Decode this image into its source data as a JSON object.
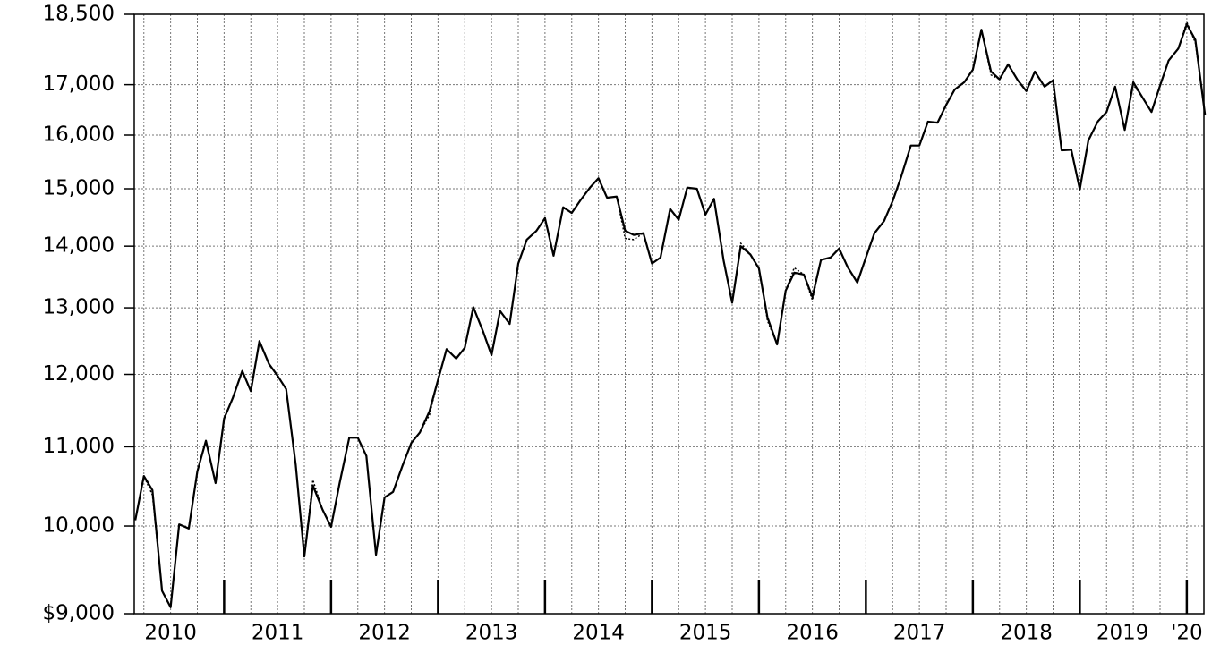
{
  "chart_data": {
    "type": "line",
    "log_scale": true,
    "grid": true,
    "xlim": [
      2010.16,
      2020.16
    ],
    "ylim": [
      9000,
      18500
    ],
    "yticks": [
      {
        "value": 9000,
        "label": "$9,000"
      },
      {
        "value": 10000,
        "label": "10,000"
      },
      {
        "value": 11000,
        "label": "11,000"
      },
      {
        "value": 12000,
        "label": "12,000"
      },
      {
        "value": 13000,
        "label": "13,000"
      },
      {
        "value": 14000,
        "label": "14,000"
      },
      {
        "value": 15000,
        "label": "15,000"
      },
      {
        "value": 16000,
        "label": "16,000"
      },
      {
        "value": 17000,
        "label": "17,000"
      },
      {
        "value": 18500,
        "label": "18,500"
      }
    ],
    "xticks": [
      2011,
      2012,
      2013,
      2014,
      2015,
      2016,
      2017,
      2018,
      2019,
      2020
    ],
    "x_minor_ticks": [
      2010.25,
      2010.5,
      2010.75,
      2011,
      2011.25,
      2011.5,
      2011.75,
      2012,
      2012.25,
      2012.5,
      2012.75,
      2013,
      2013.25,
      2013.5,
      2013.75,
      2014,
      2014.25,
      2014.5,
      2014.75,
      2015,
      2015.25,
      2015.5,
      2015.75,
      2016,
      2016.25,
      2016.5,
      2016.75,
      2017,
      2017.25,
      2017.5,
      2017.75,
      2018,
      2018.25,
      2018.5,
      2018.75,
      2019,
      2019.25,
      2019.5,
      2019.75,
      2020
    ],
    "x_labels": [
      {
        "value": 2010.5,
        "label": "2010"
      },
      {
        "value": 2011.5,
        "label": "2011"
      },
      {
        "value": 2012.5,
        "label": "2012"
      },
      {
        "value": 2013.5,
        "label": "2013"
      },
      {
        "value": 2014.5,
        "label": "2014"
      },
      {
        "value": 2015.5,
        "label": "2015"
      },
      {
        "value": 2016.5,
        "label": "2016"
      },
      {
        "value": 2017.5,
        "label": "2017"
      },
      {
        "value": 2018.5,
        "label": "2018"
      },
      {
        "value": 2019.4,
        "label": "2019"
      },
      {
        "value": 2020.0,
        "label": "'20"
      }
    ],
    "x": [
      2010.17,
      2010.25,
      2010.33,
      2010.42,
      2010.5,
      2010.58,
      2010.67,
      2010.75,
      2010.83,
      2010.92,
      2011,
      2011.08,
      2011.17,
      2011.25,
      2011.33,
      2011.42,
      2011.5,
      2011.58,
      2011.67,
      2011.75,
      2011.83,
      2011.92,
      2012,
      2012.08,
      2012.17,
      2012.25,
      2012.33,
      2012.42,
      2012.5,
      2012.58,
      2012.67,
      2012.75,
      2012.83,
      2012.92,
      2013,
      2013.08,
      2013.17,
      2013.25,
      2013.33,
      2013.42,
      2013.5,
      2013.58,
      2013.67,
      2013.75,
      2013.83,
      2013.92,
      2014,
      2014.08,
      2014.17,
      2014.25,
      2014.33,
      2014.42,
      2014.5,
      2014.58,
      2014.67,
      2014.75,
      2014.83,
      2014.92,
      2015,
      2015.08,
      2015.17,
      2015.25,
      2015.33,
      2015.42,
      2015.5,
      2015.58,
      2015.67,
      2015.75,
      2015.83,
      2015.92,
      2016,
      2016.08,
      2016.17,
      2016.25,
      2016.33,
      2016.42,
      2016.5,
      2016.58,
      2016.67,
      2016.75,
      2016.83,
      2016.92,
      2017,
      2017.08,
      2017.17,
      2017.25,
      2017.33,
      2017.42,
      2017.5,
      2017.58,
      2017.67,
      2017.75,
      2017.83,
      2017.92,
      2018,
      2018.08,
      2018.17,
      2018.25,
      2018.33,
      2018.42,
      2018.5,
      2018.58,
      2018.67,
      2018.75,
      2018.83,
      2018.92,
      2019,
      2019.08,
      2019.17,
      2019.25,
      2019.33,
      2019.42,
      2019.5,
      2019.58,
      2019.67,
      2019.75,
      2019.83,
      2019.92,
      2020,
      2020.08,
      2020.17
    ],
    "series": [
      {
        "color": "#000000",
        "style": "solid",
        "values": [
          10070,
          10620,
          10440,
          9250,
          9070,
          10020,
          9970,
          10680,
          11080,
          10530,
          11380,
          11660,
          12050,
          11760,
          12490,
          12150,
          11980,
          11790,
          10760,
          9640,
          10500,
          10200,
          9990,
          10530,
          11120,
          11120,
          10880,
          9660,
          10350,
          10420,
          10760,
          11050,
          11190,
          11480,
          11920,
          12370,
          12230,
          12390,
          13010,
          12640,
          12280,
          12950,
          12750,
          13710,
          14110,
          14260,
          14480,
          13840,
          14670,
          14570,
          14790,
          15020,
          15190,
          14840,
          14860,
          14260,
          14190,
          14220,
          13710,
          13810,
          14640,
          14450,
          15020,
          15000,
          14540,
          14820,
          13760,
          13080,
          14000,
          13860,
          13630,
          12850,
          12440,
          13270,
          13560,
          13530,
          13170,
          13770,
          13810,
          13960,
          13650,
          13400,
          13810,
          14220,
          14430,
          14780,
          15220,
          15800,
          15800,
          16260,
          16240,
          16590,
          16900,
          17050,
          17310,
          18160,
          17270,
          17110,
          17420,
          17090,
          16870,
          17270,
          16960,
          17090,
          15710,
          15720,
          14990,
          15900,
          16270,
          16450,
          16960,
          16100,
          17050,
          16760,
          16450,
          16980,
          17500,
          17750,
          18280,
          17940,
          16400
        ]
      },
      {
        "color": "#000000",
        "style": "dotted",
        "values": [
          10070,
          10620,
          10380,
          9250,
          9070,
          10020,
          9970,
          10680,
          11080,
          10530,
          11380,
          11660,
          12050,
          11760,
          12490,
          12150,
          11980,
          11790,
          10760,
          9640,
          10570,
          10200,
          9990,
          10530,
          11120,
          11120,
          10880,
          9660,
          10350,
          10420,
          10760,
          11050,
          11190,
          11430,
          11920,
          12370,
          12230,
          12390,
          13010,
          12640,
          12280,
          12950,
          12750,
          13710,
          14110,
          14260,
          14480,
          13840,
          14670,
          14570,
          14790,
          15020,
          15190,
          14840,
          14860,
          14130,
          14110,
          14220,
          13710,
          13810,
          14640,
          14450,
          15020,
          15000,
          14540,
          14820,
          13760,
          13080,
          14050,
          13860,
          13630,
          12800,
          12440,
          13270,
          13640,
          13530,
          13120,
          13770,
          13810,
          13960,
          13650,
          13400,
          13810,
          14220,
          14430,
          14780,
          15220,
          15800,
          15800,
          16260,
          16240,
          16590,
          16900,
          17050,
          17310,
          18160,
          17200,
          17110,
          17420,
          17090,
          16870,
          17270,
          16960,
          17090,
          15710,
          15720,
          14990,
          15900,
          16270,
          16450,
          16960,
          16100,
          17000,
          16760,
          16450,
          16980,
          17500,
          17750,
          18330,
          17880,
          16400
        ]
      }
    ]
  }
}
